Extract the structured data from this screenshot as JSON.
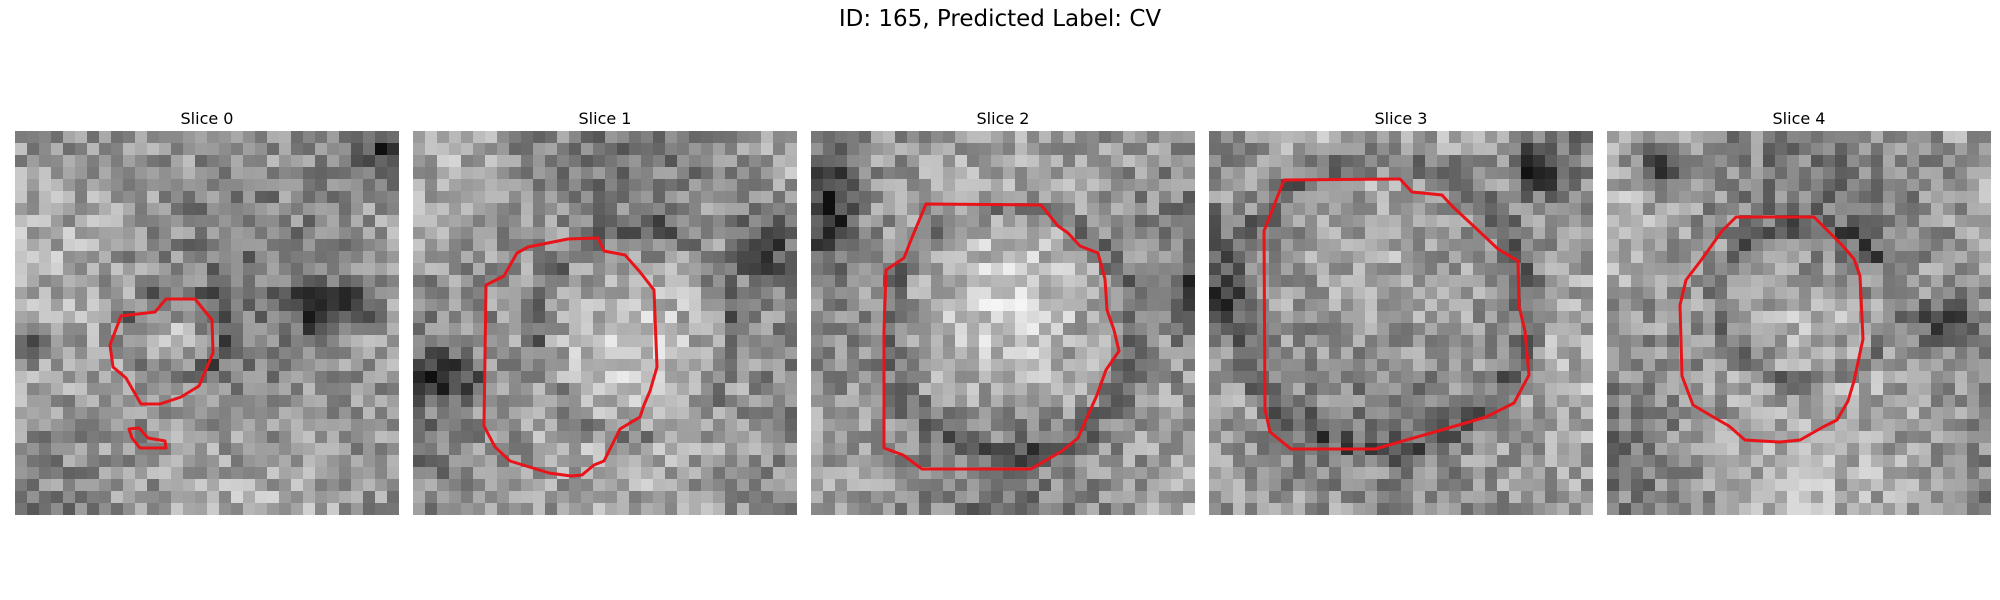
{
  "figure": {
    "title": "ID: 165, Predicted Label: CV"
  },
  "panels": [
    {
      "title": "Slice 0",
      "seed": 11,
      "blob": [
        0.42,
        0.52,
        0.12,
        0.1
      ],
      "dark": [
        [
          0.82,
          0.46,
          0.18,
          0.1
        ],
        [
          0.95,
          0.05,
          0.1,
          0.12
        ],
        [
          0.0,
          0.55,
          0.18,
          0.08
        ]
      ]
    },
    {
      "title": "Slice 1",
      "seed": 27,
      "blob": [
        0.58,
        0.52,
        0.22,
        0.24
      ],
      "dark": [
        [
          0.92,
          0.3,
          0.12,
          0.14
        ],
        [
          0.08,
          0.64,
          0.14,
          0.1
        ]
      ]
    },
    {
      "title": "Slice 2",
      "seed": 43,
      "blob": [
        0.52,
        0.52,
        0.28,
        0.28
      ],
      "dark": [
        [
          0.05,
          0.2,
          0.1,
          0.2
        ],
        [
          0.98,
          0.45,
          0.06,
          0.12
        ]
      ]
    },
    {
      "title": "Slice 3",
      "seed": 59,
      "blob": [
        0.45,
        0.45,
        0.33,
        0.33
      ],
      "dark": [
        [
          0.0,
          0.4,
          0.1,
          0.25
        ],
        [
          0.85,
          0.1,
          0.1,
          0.1
        ]
      ]
    },
    {
      "title": "Slice 4",
      "seed": 71,
      "blob": [
        0.52,
        0.45,
        0.2,
        0.18
      ],
      "dark": [
        [
          0.88,
          0.5,
          0.1,
          0.1
        ],
        [
          0.15,
          0.1,
          0.12,
          0.1
        ]
      ]
    }
  ],
  "colors": {
    "contour": "#e8141a",
    "background": "#ffffff"
  }
}
